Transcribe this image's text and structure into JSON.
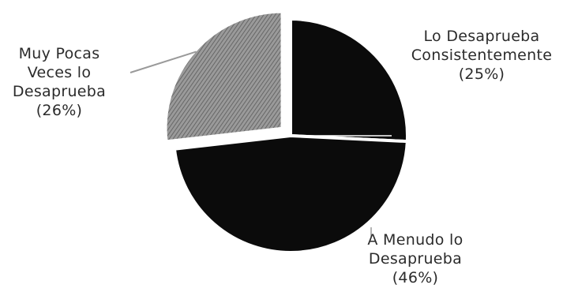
{
  "colors": {
    "background": "#ffffff",
    "slice_dark": "#0b0b0b",
    "slice_hatched": "#9a9a9a",
    "hatch_line": "#5a5a5a",
    "text": "#2b2b2b"
  },
  "chart_data": {
    "type": "pie",
    "title": "",
    "slices": [
      {
        "label_lines": [
          "Lo Desaprueba",
          "Consistentemente"
        ],
        "value": 25,
        "display": "(25%)",
        "fill": "slice_dark",
        "exploded": false
      },
      {
        "label_lines": [
          "A Menudo lo",
          "Desaprueba"
        ],
        "value": 46,
        "display": "(46%)",
        "fill": "slice_dark",
        "exploded": false
      },
      {
        "label_lines": [
          "Muy Pocas",
          "Veces lo",
          "Desaprueba"
        ],
        "value": 26,
        "display": "(26%)",
        "fill": "slice_hatched",
        "exploded": true
      }
    ],
    "legend": "none"
  }
}
